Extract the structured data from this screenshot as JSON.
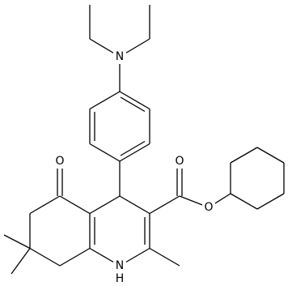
{
  "atoms": {
    "amine_n": "N",
    "ketone_o": "O",
    "carbonyl_o": "O",
    "ester_o": "O",
    "ring_n": "N",
    "ring_h": "H"
  }
}
